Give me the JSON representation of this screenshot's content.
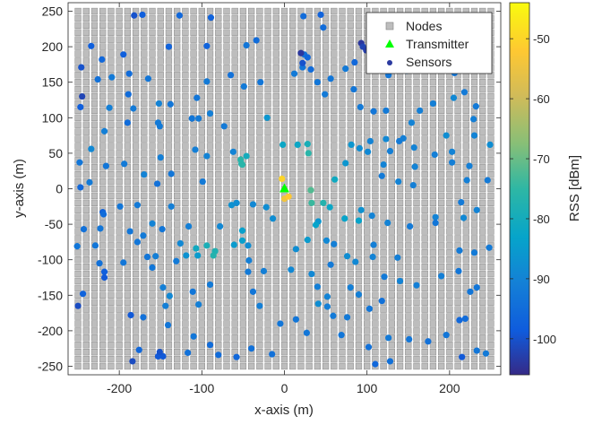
{
  "chart_data": {
    "type": "scatter",
    "xlabel": "x-axis (m)",
    "ylabel": "y-axis (m)",
    "xlim": [
      -262,
      262
    ],
    "ylim": [
      -262,
      262
    ],
    "xticks": [
      -200,
      -100,
      0,
      100,
      200
    ],
    "yticks": [
      -250,
      -200,
      -150,
      -100,
      -50,
      0,
      50,
      100,
      150,
      200,
      250
    ],
    "grid": false,
    "legend_position": "top-right",
    "legend": [
      "Nodes",
      "Transmitter",
      "Sensors"
    ],
    "nodes": {
      "x_range": [
        -250,
        250
      ],
      "y_range": [
        -250,
        250
      ],
      "spacing": 10,
      "color": "#bdbdbd"
    },
    "transmitter": {
      "x": 0,
      "y": 0,
      "color": "#00ff00"
    },
    "colorbar": {
      "label": "RSS [dBm]",
      "range": [
        -106,
        -44
      ],
      "ticks": [
        -100,
        -90,
        -80,
        -70,
        -60,
        -50
      ],
      "colormap": "parula"
    },
    "sensors": [
      [
        -182,
        244,
        -100
      ],
      [
        -172,
        245,
        -98
      ],
      [
        -127,
        244,
        -96
      ],
      [
        -89,
        241,
        -97
      ],
      [
        23,
        243,
        -95
      ],
      [
        44,
        245,
        -97
      ],
      [
        47,
        227,
        -95
      ],
      [
        -234,
        201,
        -98
      ],
      [
        -140,
        200,
        -97
      ],
      [
        -94,
        201,
        -97
      ],
      [
        -46,
        202,
        -93
      ],
      [
        -34,
        209,
        -95
      ],
      [
        -221,
        182,
        -96
      ],
      [
        -195,
        189,
        -98
      ],
      [
        -246,
        171,
        -100
      ],
      [
        -247,
        115,
        -98
      ],
      [
        -245,
        130,
        -102
      ],
      [
        -226,
        154,
        -94
      ],
      [
        -209,
        157,
        -92
      ],
      [
        -188,
        162,
        -95
      ],
      [
        -165,
        155,
        -93
      ],
      [
        -189,
        133,
        -95
      ],
      [
        -183,
        113,
        -92
      ],
      [
        -212,
        114,
        -91
      ],
      [
        -152,
        120,
        -90
      ],
      [
        -138,
        119,
        -93
      ],
      [
        -153,
        93,
        -92
      ],
      [
        -190,
        93,
        -95
      ],
      [
        -151,
        88,
        -92
      ],
      [
        -218,
        81,
        -91
      ],
      [
        -234,
        56,
        -89
      ],
      [
        -248,
        37,
        -93
      ],
      [
        -236,
        9,
        -92
      ],
      [
        -247,
        2,
        -96
      ],
      [
        -216,
        32,
        -93
      ],
      [
        -194,
        35,
        -92
      ],
      [
        -170,
        20,
        -90
      ],
      [
        -150,
        44,
        -91
      ],
      [
        -137,
        21,
        -93
      ],
      [
        -154,
        7,
        -94
      ],
      [
        -112,
        99,
        -93
      ],
      [
        -104,
        99,
        -92
      ],
      [
        -90,
        106,
        -91
      ],
      [
        -73,
        88,
        -92
      ],
      [
        -108,
        55,
        -91
      ],
      [
        -94,
        46,
        -90
      ],
      [
        -99,
        10,
        -92
      ],
      [
        -62,
        52,
        -90
      ],
      [
        -106,
        128,
        -93
      ],
      [
        -94,
        151,
        -92
      ],
      [
        -65,
        160,
        -94
      ],
      [
        -49,
        144,
        -92
      ],
      [
        -29,
        150,
        -93
      ],
      [
        -21,
        100,
        -86
      ],
      [
        12,
        162,
        -92
      ],
      [
        22,
        171,
        -93
      ],
      [
        24,
        189,
        -94
      ],
      [
        28,
        185,
        -96
      ],
      [
        32,
        168,
        -95
      ],
      [
        40,
        150,
        -93
      ],
      [
        49,
        133,
        -92
      ],
      [
        56,
        155,
        -93
      ],
      [
        74,
        169,
        -92
      ],
      [
        84,
        140,
        -93
      ],
      [
        92,
        115,
        -92
      ],
      [
        108,
        109,
        -93
      ],
      [
        123,
        110,
        -92
      ],
      [
        104,
        67,
        -90
      ],
      [
        123,
        70,
        -89
      ],
      [
        139,
        67,
        -92
      ],
      [
        154,
        93,
        -90
      ],
      [
        164,
        110,
        -91
      ],
      [
        180,
        120,
        -91
      ],
      [
        126,
        160,
        -93
      ],
      [
        148,
        166,
        -91
      ],
      [
        176,
        176,
        -92
      ],
      [
        197,
        175,
        -91
      ],
      [
        206,
        163,
        -93
      ],
      [
        205,
        128,
        -89
      ],
      [
        218,
        136,
        -92
      ],
      [
        232,
        116,
        -92
      ],
      [
        229,
        98,
        -91
      ],
      [
        249,
        62,
        -88
      ],
      [
        196,
        75,
        -88
      ],
      [
        230,
        75,
        -90
      ],
      [
        203,
        52,
        -90
      ],
      [
        182,
        48,
        -91
      ],
      [
        157,
        58,
        -90
      ],
      [
        144,
        71,
        -91
      ],
      [
        128,
        53,
        -91
      ],
      [
        101,
        52,
        -89
      ],
      [
        81,
        62,
        -86
      ],
      [
        91,
        57,
        -88
      ],
      [
        120,
        34,
        -90
      ],
      [
        158,
        31,
        -90
      ],
      [
        118,
        18,
        -92
      ],
      [
        138,
        10,
        -90
      ],
      [
        156,
        5,
        -91
      ],
      [
        203,
        37,
        -91
      ],
      [
        224,
        32,
        -91
      ],
      [
        221,
        12,
        -91
      ],
      [
        246,
        12,
        -92
      ],
      [
        214,
        -19,
        -92
      ],
      [
        233,
        -30,
        -90
      ],
      [
        217,
        -41,
        -89
      ],
      [
        183,
        -40,
        -90
      ],
      [
        183,
        -48,
        -93
      ],
      [
        152,
        -53,
        -92
      ],
      [
        125,
        -48,
        -90
      ],
      [
        106,
        -38,
        -90
      ],
      [
        93,
        -30,
        -87
      ],
      [
        90,
        -45,
        -83
      ],
      [
        73,
        -42,
        -83
      ],
      [
        55,
        -26,
        -82
      ],
      [
        47,
        -20,
        -77
      ],
      [
        41,
        -46,
        -86
      ],
      [
        32,
        -2,
        -72
      ],
      [
        33,
        -20,
        -74
      ],
      [
        38,
        -51,
        -83
      ],
      [
        28,
        -72,
        -85
      ],
      [
        14,
        -85,
        -88
      ],
      [
        8,
        -114,
        -89
      ],
      [
        33,
        -120,
        -89
      ],
      [
        56,
        -107,
        -92
      ],
      [
        60,
        -78,
        -91
      ],
      [
        51,
        -73,
        -89
      ],
      [
        76,
        -95,
        -88
      ],
      [
        86,
        -103,
        -89
      ],
      [
        107,
        -96,
        -90
      ],
      [
        108,
        -79,
        -91
      ],
      [
        137,
        -97,
        -91
      ],
      [
        121,
        -124,
        -92
      ],
      [
        140,
        -130,
        -90
      ],
      [
        160,
        -136,
        -91
      ],
      [
        190,
        -123,
        -91
      ],
      [
        212,
        -87,
        -92
      ],
      [
        230,
        -90,
        -92
      ],
      [
        248,
        -83,
        -92
      ],
      [
        211,
        -116,
        -93
      ],
      [
        225,
        -145,
        -93
      ],
      [
        233,
        -139,
        -93
      ],
      [
        212,
        -185,
        -96
      ],
      [
        219,
        -183,
        -95
      ],
      [
        196,
        -206,
        -93
      ],
      [
        215,
        -237,
        -99
      ],
      [
        233,
        -228,
        -93
      ],
      [
        244,
        -232,
        -92
      ],
      [
        174,
        -215,
        -94
      ],
      [
        151,
        -212,
        -93
      ],
      [
        126,
        -210,
        -92
      ],
      [
        128,
        -243,
        -94
      ],
      [
        110,
        -247,
        -96
      ],
      [
        102,
        -223,
        -94
      ],
      [
        69,
        -206,
        -93
      ],
      [
        76,
        -181,
        -92
      ],
      [
        103,
        -169,
        -93
      ],
      [
        118,
        -158,
        -94
      ],
      [
        90,
        -149,
        -91
      ],
      [
        80,
        -139,
        -91
      ],
      [
        52,
        -152,
        -90
      ],
      [
        40,
        -138,
        -91
      ],
      [
        41,
        -162,
        -88
      ],
      [
        52,
        -166,
        -91
      ],
      [
        59,
        -179,
        -92
      ],
      [
        27,
        -203,
        -93
      ],
      [
        14,
        -184,
        -93
      ],
      [
        -5,
        -190,
        -93
      ],
      [
        -15,
        -233,
        -94
      ],
      [
        -40,
        -225,
        -94
      ],
      [
        -58,
        -237,
        -96
      ],
      [
        -80,
        -234,
        -95
      ],
      [
        -90,
        -220,
        -95
      ],
      [
        -110,
        -208,
        -93
      ],
      [
        -117,
        -231,
        -94
      ],
      [
        -147,
        -236,
        -99
      ],
      [
        -153,
        -236,
        -99
      ],
      [
        -151,
        -230,
        -100
      ],
      [
        -184,
        -243,
        -101
      ],
      [
        -176,
        -227,
        -96
      ],
      [
        -186,
        -178,
        -99
      ],
      [
        -171,
        -181,
        -94
      ],
      [
        -141,
        -192,
        -93
      ],
      [
        -144,
        -165,
        -91
      ],
      [
        -139,
        -151,
        -89
      ],
      [
        -147,
        -139,
        -91
      ],
      [
        -104,
        -163,
        -91
      ],
      [
        -111,
        -145,
        -93
      ],
      [
        -90,
        -135,
        -92
      ],
      [
        -38,
        -145,
        -93
      ],
      [
        -30,
        -165,
        -91
      ],
      [
        -25,
        -116,
        -91
      ],
      [
        -43,
        -101,
        -91
      ],
      [
        -44,
        -117,
        -92
      ],
      [
        -84,
        -88,
        -78
      ],
      [
        -86,
        -94,
        -77
      ],
      [
        -94,
        -80,
        -79
      ],
      [
        -107,
        -84,
        -81
      ],
      [
        -105,
        -94,
        -85
      ],
      [
        -119,
        -94,
        -87
      ],
      [
        -126,
        -77,
        -89
      ],
      [
        -116,
        -53,
        -91
      ],
      [
        -78,
        -53,
        -89
      ],
      [
        -61,
        -79,
        -85
      ],
      [
        -51,
        -59,
        -84
      ],
      [
        -44,
        -80,
        -88
      ],
      [
        -51,
        -73,
        -84
      ],
      [
        -64,
        -23,
        -87
      ],
      [
        -58,
        -20,
        -88
      ],
      [
        -38,
        -22,
        -89
      ],
      [
        -22,
        -26,
        -88
      ],
      [
        -14,
        -42,
        -88
      ],
      [
        -52,
        35,
        -77
      ],
      [
        -53,
        41,
        -76
      ],
      [
        -51,
        34,
        -76
      ],
      [
        -46,
        46,
        -80
      ],
      [
        -2,
        62,
        -82
      ],
      [
        16,
        62,
        -82
      ],
      [
        29,
        50,
        -76
      ],
      [
        28,
        63,
        -79
      ],
      [
        61,
        13,
        -81
      ],
      [
        74,
        36,
        -86
      ],
      [
        -137,
        -25,
        -91
      ],
      [
        -148,
        -57,
        -93
      ],
      [
        -160,
        -49,
        -90
      ],
      [
        -178,
        -23,
        -92
      ],
      [
        -199,
        -25,
        -93
      ],
      [
        -220,
        -33,
        -97
      ],
      [
        -219,
        -36,
        -95
      ],
      [
        -223,
        -56,
        -93
      ],
      [
        -243,
        -57,
        -94
      ],
      [
        -251,
        -81,
        -93
      ],
      [
        -229,
        -80,
        -93
      ],
      [
        -224,
        -105,
        -94
      ],
      [
        -218,
        -117,
        -98
      ],
      [
        -218,
        -125,
        -99
      ],
      [
        -244,
        -148,
        -97
      ],
      [
        -250,
        -165,
        -101
      ],
      [
        -195,
        -104,
        -93
      ],
      [
        -166,
        -96,
        -93
      ],
      [
        -160,
        -111,
        -93
      ],
      [
        -178,
        -75,
        -93
      ],
      [
        -171,
        -66,
        -92
      ],
      [
        -187,
        -60,
        -93
      ],
      [
        -156,
        -95,
        -91
      ],
      [
        -131,
        -102,
        -92
      ],
      [
        93,
        205,
        -104
      ],
      [
        95,
        200,
        -102
      ],
      [
        99,
        195,
        -103
      ],
      [
        20,
        191,
        -104
      ],
      [
        22,
        177,
        -100
      ],
      [
        85,
        178,
        -96
      ],
      [
        -3,
        14,
        -50
      ],
      [
        0,
        -14,
        -54
      ],
      [
        5,
        -11,
        -52
      ]
    ]
  }
}
